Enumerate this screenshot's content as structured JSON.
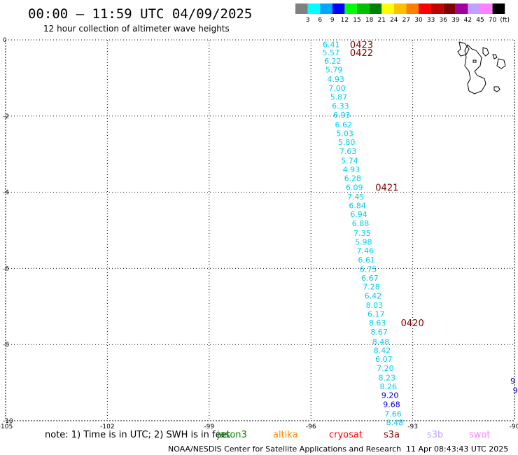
{
  "header": {
    "title": "00:00 – 11:59 UTC 04/09/2025",
    "subtitle": "12 hour collection of altimeter wave heights"
  },
  "legend": {
    "labels": [
      "3",
      "6",
      "9",
      "12",
      "15",
      "18",
      "21",
      "24",
      "27",
      "30",
      "33",
      "36",
      "39",
      "42",
      "45",
      "70",
      "(ft)"
    ],
    "colors": [
      "#808080",
      "#00ffff",
      "#00a8ff",
      "#0000ff",
      "#00ff00",
      "#00c000",
      "#008000",
      "#ffff00",
      "#ffc000",
      "#ff8000",
      "#ff0000",
      "#c00000",
      "#800000",
      "#a000a0",
      "#c0a0ff",
      "#ff80ff",
      "#000000"
    ]
  },
  "axes": {
    "x_ticks": [
      "-105",
      "-102",
      "-99",
      "-96",
      "-93",
      "-90"
    ],
    "y_ticks": [
      "0",
      "-2",
      "-4",
      "-6",
      "-8",
      "-10"
    ],
    "xlim": [
      -105,
      -90
    ],
    "ylim": [
      -10,
      0
    ]
  },
  "track": {
    "color": "#00ccee",
    "high_color": "#0000cc",
    "points": [
      {
        "lon": -95.4,
        "lat": -0.12,
        "v": "6.41"
      },
      {
        "lon": -95.41,
        "lat": -0.33,
        "v": "5.57"
      },
      {
        "lon": -95.36,
        "lat": -0.55,
        "v": "6.22"
      },
      {
        "lon": -95.32,
        "lat": -0.78,
        "v": "5.79"
      },
      {
        "lon": -95.27,
        "lat": -1.03,
        "v": "4.93"
      },
      {
        "lon": -95.23,
        "lat": -1.27,
        "v": "7.00"
      },
      {
        "lon": -95.18,
        "lat": -1.5,
        "v": "5.87"
      },
      {
        "lon": -95.13,
        "lat": -1.73,
        "v": "6.33"
      },
      {
        "lon": -95.09,
        "lat": -1.97,
        "v": "6.93"
      },
      {
        "lon": -95.04,
        "lat": -2.22,
        "v": "6.62"
      },
      {
        "lon": -95.0,
        "lat": -2.45,
        "v": "5.03"
      },
      {
        "lon": -94.95,
        "lat": -2.68,
        "v": "5.80"
      },
      {
        "lon": -94.91,
        "lat": -2.92,
        "v": "7.63"
      },
      {
        "lon": -94.86,
        "lat": -3.17,
        "v": "5.74"
      },
      {
        "lon": -94.81,
        "lat": -3.4,
        "v": "4.93"
      },
      {
        "lon": -94.77,
        "lat": -3.63,
        "v": "6.28"
      },
      {
        "lon": -94.72,
        "lat": -3.87,
        "v": "6.09"
      },
      {
        "lon": -94.68,
        "lat": -4.12,
        "v": "7.45"
      },
      {
        "lon": -94.63,
        "lat": -4.35,
        "v": "6.84"
      },
      {
        "lon": -94.59,
        "lat": -4.58,
        "v": "6.94"
      },
      {
        "lon": -94.54,
        "lat": -4.82,
        "v": "6.88"
      },
      {
        "lon": -94.49,
        "lat": -5.07,
        "v": "7.35"
      },
      {
        "lon": -94.45,
        "lat": -5.3,
        "v": "5.98"
      },
      {
        "lon": -94.4,
        "lat": -5.53,
        "v": "7.46"
      },
      {
        "lon": -94.36,
        "lat": -5.77,
        "v": "6.61"
      },
      {
        "lon": -94.31,
        "lat": -6.02,
        "v": "6.75"
      },
      {
        "lon": -94.26,
        "lat": -6.25,
        "v": "6.67"
      },
      {
        "lon": -94.22,
        "lat": -6.48,
        "v": "7.28"
      },
      {
        "lon": -94.17,
        "lat": -6.72,
        "v": "6.42"
      },
      {
        "lon": -94.13,
        "lat": -6.97,
        "v": "8.03"
      },
      {
        "lon": -94.08,
        "lat": -7.2,
        "v": "6.17"
      },
      {
        "lon": -94.04,
        "lat": -7.43,
        "v": "8.63"
      },
      {
        "lon": -93.99,
        "lat": -7.67,
        "v": "8.67"
      },
      {
        "lon": -93.94,
        "lat": -7.92,
        "v": "8.48"
      },
      {
        "lon": -93.9,
        "lat": -8.15,
        "v": "8.42"
      },
      {
        "lon": -93.85,
        "lat": -8.38,
        "v": "6.07"
      },
      {
        "lon": -93.81,
        "lat": -8.62,
        "v": "7.20"
      },
      {
        "lon": -93.76,
        "lat": -8.87,
        "v": "8.23"
      },
      {
        "lon": -93.72,
        "lat": -9.1,
        "v": "8.26"
      },
      {
        "lon": -93.67,
        "lat": -9.33,
        "v": "9.20"
      },
      {
        "lon": -93.62,
        "lat": -9.57,
        "v": "9.68"
      },
      {
        "lon": -93.58,
        "lat": -9.82,
        "v": "7.66"
      },
      {
        "lon": -93.53,
        "lat": -10.05,
        "v": "8.48"
      }
    ]
  },
  "time_labels": [
    {
      "lon": -94.85,
      "lat": -0.12,
      "text": "0423"
    },
    {
      "lon": -94.85,
      "lat": -0.33,
      "text": "0422"
    },
    {
      "lon": -94.1,
      "lat": -3.87,
      "text": "0421"
    },
    {
      "lon": -93.35,
      "lat": -7.43,
      "text": "0420"
    }
  ],
  "edge_values": [
    {
      "lon": -90.12,
      "lat": -8.95,
      "text": "9"
    },
    {
      "lon": -90.05,
      "lat": -9.2,
      "text": "9"
    }
  ],
  "footer": {
    "note": "note: 1) Time is in UTC; 2) SWH is in feet",
    "satellites": [
      {
        "name": "jason3",
        "color": "#008800"
      },
      {
        "name": "altika",
        "color": "#ff8800"
      },
      {
        "name": "cryosat",
        "color": "#ff0000"
      },
      {
        "name": "s3a",
        "color": "#880000"
      },
      {
        "name": "s3b",
        "color": "#c0a0ff"
      },
      {
        "name": "swot",
        "color": "#ff80ff"
      }
    ],
    "credit": "NOAA/NESDIS Center for Satellite Applications and Research",
    "timestamp": "11 Apr 08:43:43 UTC 2025"
  }
}
